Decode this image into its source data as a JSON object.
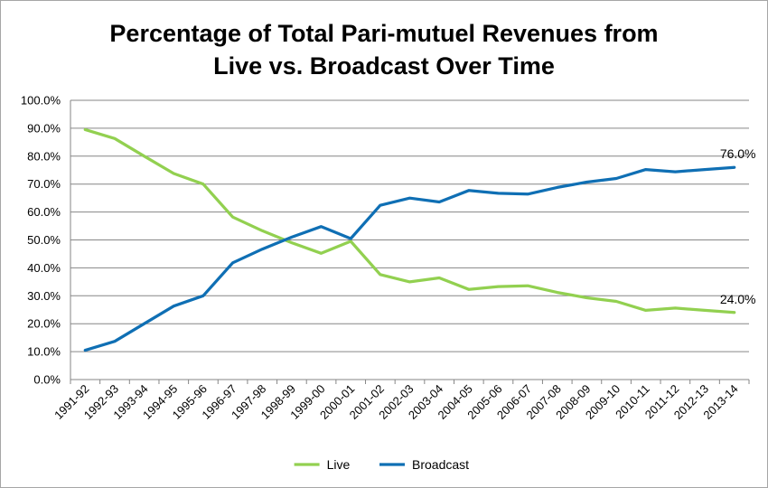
{
  "chart_data": {
    "type": "line",
    "title_lines": [
      "Percentage of Total Pari-mutuel Revenues from",
      "Live vs. Broadcast Over Time"
    ],
    "xlabel": "",
    "ylabel": "",
    "ylim": [
      0,
      100
    ],
    "y_ticks": [
      "0.0%",
      "10.0%",
      "20.0%",
      "30.0%",
      "40.0%",
      "50.0%",
      "60.0%",
      "70.0%",
      "80.0%",
      "90.0%",
      "100.0%"
    ],
    "grid": true,
    "legend_position": "bottom",
    "categories": [
      "1991-92",
      "1992-93",
      "1993-94",
      "1994-95",
      "1995-96",
      "1996-97",
      "1997-98",
      "1998-99",
      "1999-00",
      "2000-01",
      "2001-02",
      "2002-03",
      "2003-04",
      "2004-05",
      "2005-06",
      "2006-07",
      "2007-08",
      "2008-09",
      "2009-10",
      "2010-11",
      "2011-12",
      "2012-13",
      "2013-14"
    ],
    "series": [
      {
        "name": "Live",
        "color": "#92d050",
        "values": [
          89.5,
          86.3,
          80.0,
          73.8,
          70.0,
          58.2,
          53.3,
          49.0,
          45.2,
          49.5,
          37.6,
          35.0,
          36.4,
          32.3,
          33.3,
          33.6,
          31.2,
          29.3,
          28.0,
          24.8,
          25.6,
          24.8,
          24.0
        ],
        "end_label": "24.0%"
      },
      {
        "name": "Broadcast",
        "color": "#0f6fb4",
        "values": [
          10.5,
          13.7,
          20.0,
          26.3,
          30.0,
          41.8,
          46.7,
          51.0,
          54.8,
          50.5,
          62.4,
          65.0,
          63.6,
          67.7,
          66.7,
          66.4,
          68.8,
          70.7,
          72.0,
          75.2,
          74.4,
          75.2,
          76.0
        ],
        "end_label": "76.0%"
      }
    ]
  }
}
